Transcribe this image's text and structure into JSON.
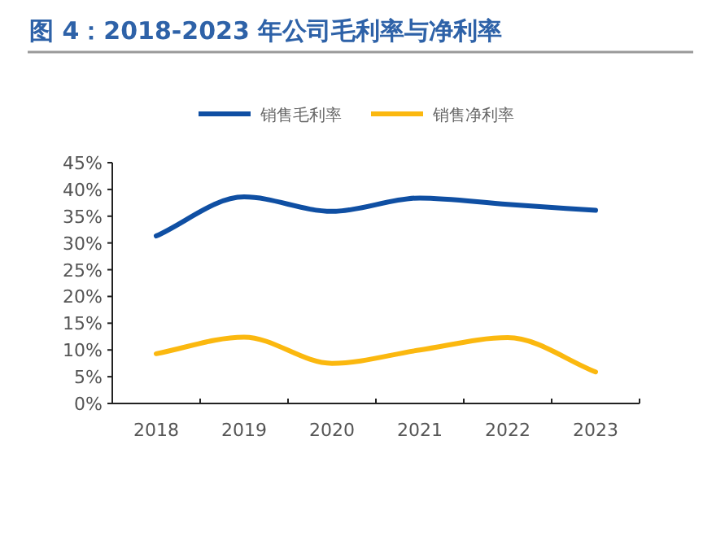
{
  "chart_data": {
    "type": "line",
    "title": "图 4：2018-2023 年公司毛利率与净利率",
    "categories": [
      "2018",
      "2019",
      "2020",
      "2021",
      "2022",
      "2023"
    ],
    "series": [
      {
        "name": "销售毛利率",
        "color": "#0f4fa3",
        "values": [
          31.3,
          38.6,
          35.9,
          38.4,
          37.2,
          36.1
        ]
      },
      {
        "name": "销售净利率",
        "color": "#fbb80f",
        "values": [
          9.3,
          12.4,
          7.5,
          10.0,
          12.3,
          5.9
        ]
      }
    ],
    "ylim": [
      0,
      45
    ],
    "yticks": [
      {
        "value": 0,
        "label": "0%"
      },
      {
        "value": 5,
        "label": "5%"
      },
      {
        "value": 10,
        "label": "10%"
      },
      {
        "value": 15,
        "label": "15%"
      },
      {
        "value": 20,
        "label": "20%"
      },
      {
        "value": 25,
        "label": "25%"
      },
      {
        "value": 30,
        "label": "30%"
      },
      {
        "value": 35,
        "label": "35%"
      },
      {
        "value": 40,
        "label": "40%"
      },
      {
        "value": 45,
        "label": "45%"
      }
    ],
    "grid": false,
    "legend": "top",
    "marker": "none",
    "line_style": "solid"
  }
}
